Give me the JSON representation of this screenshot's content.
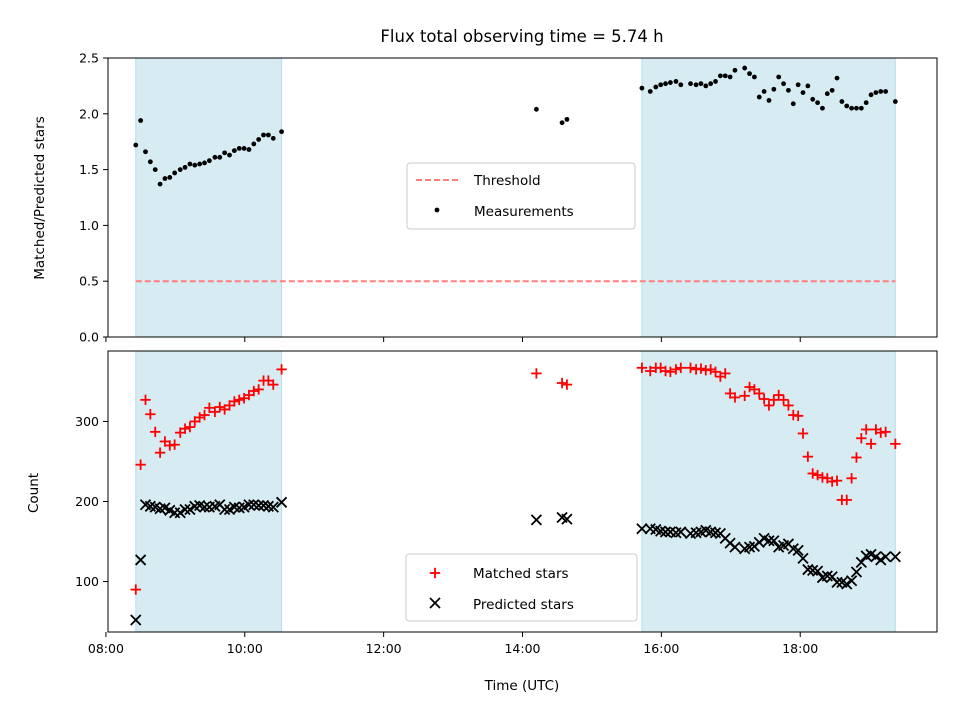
{
  "title": "Flux total observing time = 5.74 h",
  "colors": {
    "shade": "#add8e6",
    "threshold": "#ff7f7f",
    "matched": "#ff0000",
    "predicted": "#000000",
    "measurement": "#000000"
  },
  "chart_data": [
    {
      "type": "scatter",
      "panel": "top",
      "ylabel": "Matched/Predicted stars",
      "ylim": [
        0,
        2.5
      ],
      "yticks": [
        0,
        0.5,
        1.0,
        1.5,
        2.0,
        2.5
      ],
      "ytick_labels": [
        "0.0",
        "0.5",
        "1.0",
        "1.5",
        "2.0",
        "2.5"
      ],
      "xlim": [
        8.03,
        19.97
      ],
      "xticks": [
        8,
        10,
        12,
        14,
        16,
        18
      ],
      "tick_labels_visible": false,
      "shaded_intervals": [
        [
          8.43,
          10.53
        ],
        [
          15.72,
          19.37
        ]
      ],
      "threshold": {
        "label": "Threshold",
        "value": 0.5,
        "x": [
          8.43,
          19.37
        ]
      },
      "legend": {
        "placement": "center",
        "entries": [
          "Threshold",
          "Measurements"
        ]
      },
      "series": [
        {
          "name": "Measurements",
          "marker": "dot",
          "x": [
            8.43,
            8.5,
            8.57,
            8.64,
            8.71,
            8.78,
            8.85,
            8.92,
            8.99,
            9.07,
            9.14,
            9.21,
            9.28,
            9.35,
            9.42,
            9.49,
            9.57,
            9.64,
            9.71,
            9.78,
            9.85,
            9.92,
            9.99,
            10.06,
            10.13,
            10.2,
            10.27,
            10.34,
            10.41,
            10.53,
            14.2,
            14.57,
            14.64,
            15.72,
            15.84,
            15.92,
            15.99,
            16.06,
            16.13,
            16.21,
            16.28,
            16.42,
            16.5,
            16.57,
            16.64,
            16.71,
            16.78,
            16.85,
            16.92,
            16.99,
            17.06,
            17.2,
            17.27,
            17.34,
            17.41,
            17.48,
            17.55,
            17.62,
            17.69,
            17.76,
            17.83,
            17.9,
            17.97,
            18.04,
            18.11,
            18.18,
            18.25,
            18.32,
            18.39,
            18.46,
            18.53,
            18.6,
            18.67,
            18.74,
            18.81,
            18.88,
            18.95,
            19.02,
            19.09,
            19.16,
            19.23,
            19.37
          ],
          "y": [
            1.72,
            1.94,
            1.66,
            1.57,
            1.5,
            1.37,
            1.42,
            1.43,
            1.47,
            1.5,
            1.52,
            1.55,
            1.54,
            1.55,
            1.56,
            1.58,
            1.61,
            1.61,
            1.65,
            1.63,
            1.67,
            1.69,
            1.69,
            1.68,
            1.73,
            1.77,
            1.81,
            1.81,
            1.78,
            1.84,
            2.04,
            1.92,
            1.95,
            2.23,
            2.2,
            2.24,
            2.26,
            2.27,
            2.28,
            2.29,
            2.26,
            2.27,
            2.26,
            2.27,
            2.25,
            2.27,
            2.29,
            2.34,
            2.34,
            2.33,
            2.39,
            2.41,
            2.36,
            2.33,
            2.15,
            2.2,
            2.12,
            2.22,
            2.33,
            2.27,
            2.21,
            2.09,
            2.26,
            2.19,
            2.25,
            2.13,
            2.1,
            2.05,
            2.18,
            2.21,
            2.32,
            2.11,
            2.07,
            2.05,
            2.05,
            2.05,
            2.1,
            2.17,
            2.19,
            2.2,
            2.2,
            2.11
          ]
        }
      ]
    },
    {
      "type": "scatter",
      "panel": "bottom",
      "ylabel": "Count",
      "xlabel": "Time (UTC)",
      "ylim": [
        37,
        388
      ],
      "yticks": [
        100,
        200,
        300
      ],
      "ytick_labels": [
        "100",
        "200",
        "300"
      ],
      "xlim": [
        8.03,
        19.97
      ],
      "xticks": [
        8,
        10,
        12,
        14,
        16,
        18
      ],
      "xtick_labels": [
        "08:00",
        "10:00",
        "12:00",
        "14:00",
        "16:00",
        "18:00"
      ],
      "shaded_intervals": [
        [
          8.43,
          10.53
        ],
        [
          15.72,
          19.37
        ]
      ],
      "legend": {
        "placement": "lower-center",
        "entries": [
          "Matched stars",
          "Predicted stars"
        ]
      },
      "series": [
        {
          "name": "Matched stars",
          "marker": "plus",
          "x": [
            8.43,
            8.5,
            8.57,
            8.64,
            8.71,
            8.78,
            8.85,
            8.92,
            8.99,
            9.07,
            9.14,
            9.21,
            9.28,
            9.35,
            9.42,
            9.49,
            9.57,
            9.64,
            9.71,
            9.78,
            9.85,
            9.92,
            9.99,
            10.06,
            10.13,
            10.2,
            10.27,
            10.34,
            10.41,
            10.53,
            14.2,
            14.57,
            14.64,
            15.72,
            15.84,
            15.92,
            15.99,
            16.06,
            16.13,
            16.21,
            16.28,
            16.42,
            16.5,
            16.57,
            16.64,
            16.71,
            16.78,
            16.85,
            16.92,
            16.99,
            17.06,
            17.2,
            17.27,
            17.34,
            17.41,
            17.48,
            17.55,
            17.62,
            17.69,
            17.76,
            17.83,
            17.9,
            17.97,
            18.04,
            18.11,
            18.18,
            18.25,
            18.32,
            18.39,
            18.46,
            18.53,
            18.6,
            18.67,
            18.74,
            18.81,
            18.88,
            18.95,
            19.02,
            19.09,
            19.16,
            19.23,
            19.37
          ],
          "y": [
            90,
            246,
            327,
            309,
            287,
            261,
            275,
            270,
            271,
            286,
            291,
            293,
            300,
            305,
            308,
            317,
            312,
            318,
            315,
            320,
            325,
            327,
            329,
            333,
            338,
            340,
            351,
            351,
            346,
            365,
            360,
            348,
            346,
            367,
            363,
            367,
            367,
            363,
            362,
            365,
            367,
            367,
            365,
            366,
            364,
            365,
            362,
            356,
            360,
            335,
            330,
            332,
            343,
            340,
            335,
            328,
            320,
            327,
            333,
            327,
            320,
            308,
            307,
            285,
            256,
            235,
            233,
            230,
            229,
            225,
            226,
            202,
            202,
            229,
            255,
            279,
            290,
            272,
            290,
            286,
            287,
            272
          ]
        },
        {
          "name": "Predicted stars",
          "marker": "x",
          "x": [
            8.43,
            8.5,
            8.57,
            8.64,
            8.71,
            8.78,
            8.85,
            8.92,
            8.99,
            9.07,
            9.14,
            9.21,
            9.28,
            9.35,
            9.42,
            9.49,
            9.57,
            9.64,
            9.71,
            9.78,
            9.85,
            9.92,
            9.99,
            10.06,
            10.13,
            10.2,
            10.27,
            10.34,
            10.41,
            10.53,
            14.2,
            14.57,
            14.64,
            15.72,
            15.84,
            15.92,
            15.99,
            16.06,
            16.13,
            16.21,
            16.28,
            16.42,
            16.5,
            16.57,
            16.64,
            16.71,
            16.78,
            16.85,
            16.92,
            16.99,
            17.06,
            17.2,
            17.27,
            17.34,
            17.41,
            17.48,
            17.55,
            17.62,
            17.69,
            17.76,
            17.83,
            17.9,
            17.97,
            18.04,
            18.11,
            18.18,
            18.25,
            18.32,
            18.39,
            18.46,
            18.53,
            18.6,
            18.67,
            18.74,
            18.81,
            18.88,
            18.95,
            19.02,
            19.09,
            19.16,
            19.23,
            19.37
          ],
          "y": [
            52,
            127,
            196,
            194,
            193,
            191,
            192,
            189,
            186,
            186,
            190,
            190,
            194,
            195,
            193,
            193,
            194,
            196,
            190,
            190,
            193,
            192,
            193,
            196,
            196,
            195,
            195,
            194,
            193,
            199,
            177,
            180,
            178,
            166,
            166,
            165,
            163,
            162,
            162,
            161,
            162,
            160,
            161,
            162,
            164,
            162,
            161,
            160,
            154,
            148,
            143,
            141,
            143,
            144,
            149,
            154,
            151,
            151,
            143,
            145,
            147,
            141,
            139,
            129,
            115,
            114,
            113,
            105,
            107,
            106,
            99,
            99,
            97,
            101,
            112,
            124,
            132,
            134,
            131,
            127,
            131,
            131
          ]
        }
      ]
    }
  ]
}
